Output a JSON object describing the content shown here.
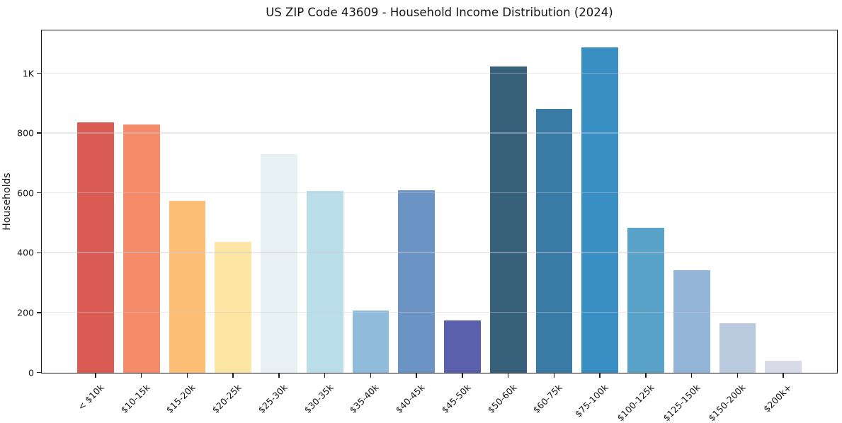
{
  "title": "US ZIP Code 43609 - Household Income Distribution (2024)",
  "chart_data": {
    "type": "bar",
    "title": "US ZIP Code 43609 - Household Income Distribution (2024)",
    "xlabel": "",
    "ylabel": "Households",
    "categories": [
      "< $10k",
      "$10-15k",
      "$15-20k",
      "$20-25k",
      "$25-30k",
      "$30-35k",
      "$35-40k",
      "$40-45k",
      "$45-50k",
      "$50-60k",
      "$60-75k",
      "$75-100k",
      "$100-125k",
      "$125-150k",
      "$150-200k",
      "$200k+"
    ],
    "values": [
      838,
      830,
      575,
      437,
      731,
      607,
      208,
      611,
      175,
      1025,
      881,
      1088,
      485,
      343,
      165,
      40
    ],
    "bar_colors": [
      "#d95b54",
      "#f58b69",
      "#fcbd74",
      "#fde5a3",
      "#e7f1f4",
      "#badee9",
      "#90bbdb",
      "#6b93c4",
      "#5a60ab",
      "#37607b",
      "#397ba4",
      "#398fc3",
      "#5aa3c8",
      "#92b5d8",
      "#b9c9de",
      "#d9dae8"
    ],
    "y_ticks": [
      {
        "value": 0,
        "label": "0"
      },
      {
        "value": 200,
        "label": "200"
      },
      {
        "value": 400,
        "label": "400"
      },
      {
        "value": 600,
        "label": "600"
      },
      {
        "value": 800,
        "label": "800"
      },
      {
        "value": 1000,
        "label": "1K"
      }
    ],
    "ylim": [
      0,
      1142
    ],
    "grid": "horizontal-only",
    "legend": "none",
    "x_tick_rotation_deg": 45
  },
  "colors": {
    "background": "#ffffff",
    "spine": "#1a1a1a",
    "grid": "#e9e9ef",
    "text": "#141414"
  }
}
